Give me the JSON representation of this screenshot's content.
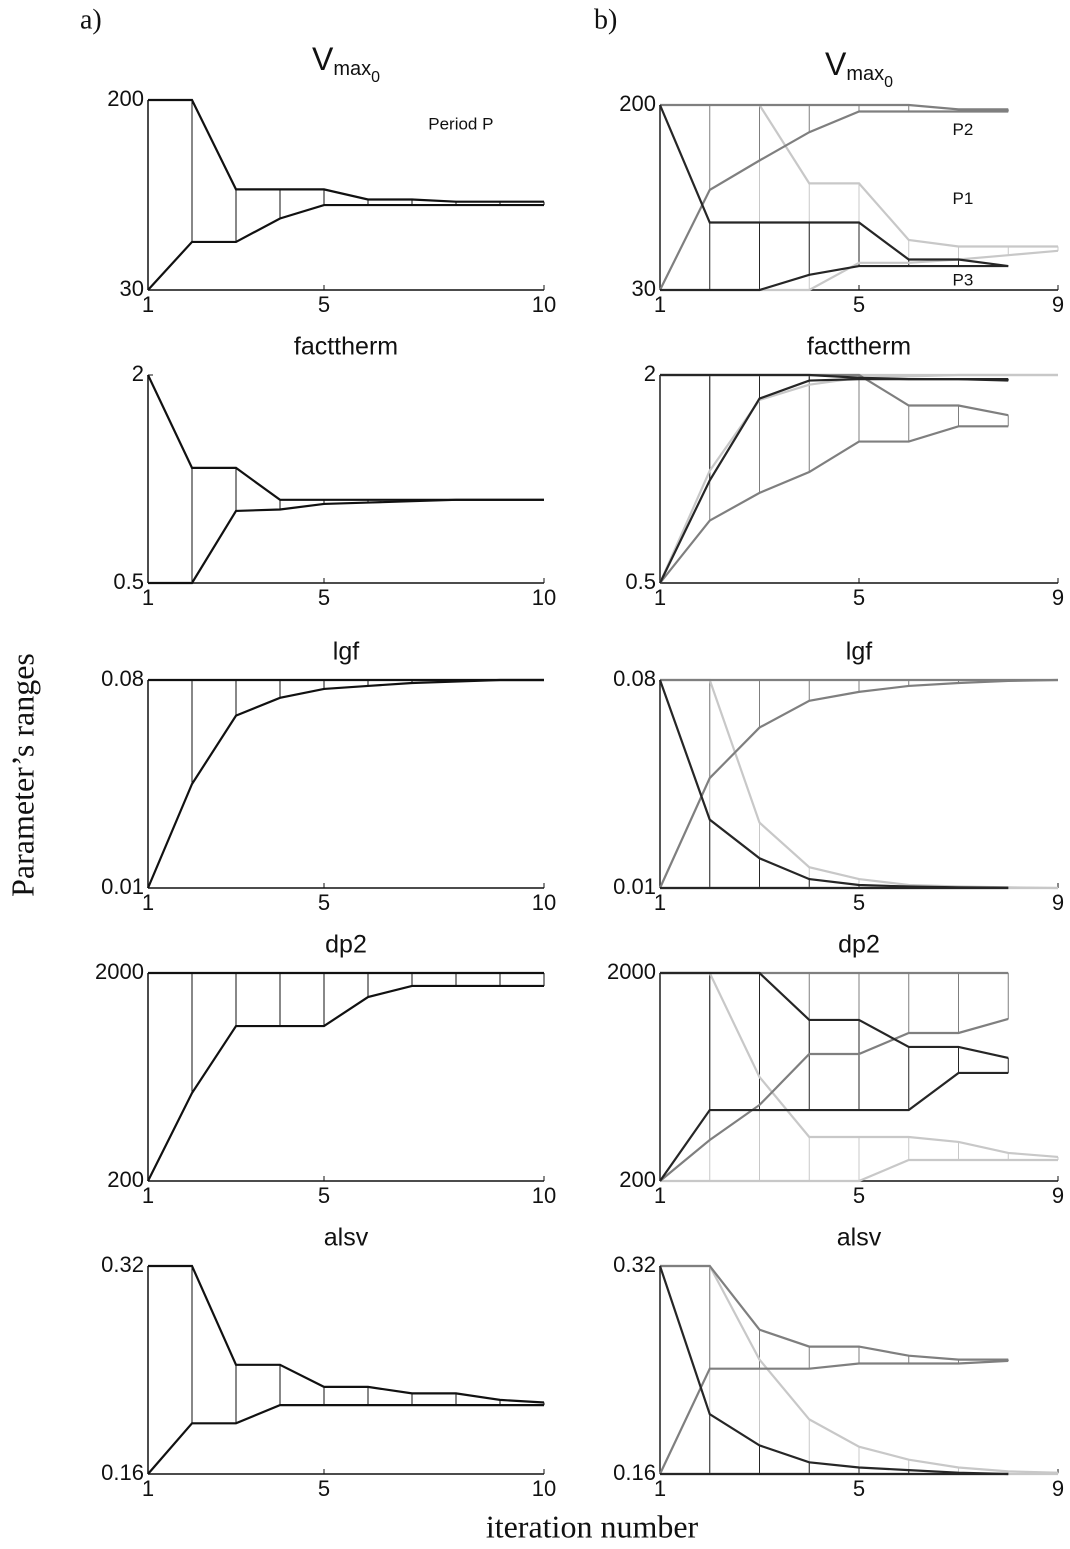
{
  "figure": {
    "panel_labels": [
      "a)",
      "b)"
    ],
    "ylabel": "Parameter’s ranges",
    "xlabel": "iteration number"
  },
  "chart_data": [
    {
      "type": "range",
      "title": [
        "V",
        "max",
        "0"
      ],
      "annotation": "Period P",
      "x": [
        1,
        2,
        3,
        4,
        5,
        6,
        7,
        8,
        9,
        10
      ],
      "xlim": [
        1,
        10
      ],
      "xticks": [
        1,
        5,
        10
      ],
      "ylim": [
        30,
        200
      ],
      "yticks": [
        30,
        200
      ],
      "series": [
        {
          "color": "#111111",
          "upper": [
            200,
            200,
            120,
            120,
            120,
            111,
            111,
            109,
            109,
            109
          ],
          "lower": [
            30,
            73,
            73,
            94,
            106,
            106,
            106,
            106,
            106,
            106
          ]
        }
      ]
    },
    {
      "type": "range",
      "title": [
        "V",
        "max",
        "0"
      ],
      "x": [
        1,
        2,
        3,
        4,
        5,
        6,
        7,
        8,
        9
      ],
      "xlim": [
        1,
        9
      ],
      "xticks": [
        1,
        5,
        9
      ],
      "ylim": [
        30,
        200
      ],
      "yticks": [
        30,
        200
      ],
      "series": [
        {
          "name": "P1",
          "color": "#c8c8c8",
          "upper": [
            null,
            null,
            200,
            128,
            128,
            76,
            70,
            70,
            70
          ],
          "lower": [
            null,
            null,
            30,
            30,
            55,
            55,
            58,
            62,
            66
          ]
        },
        {
          "name": "P2",
          "color": "#7f7f7f",
          "upper": [
            200,
            200,
            200,
            200,
            200,
            200,
            196,
            196,
            null
          ],
          "lower": [
            30,
            122,
            149,
            175,
            194,
            194,
            194,
            194,
            null
          ]
        },
        {
          "name": "P3",
          "color": "#262626",
          "upper": [
            200,
            92,
            92,
            92,
            92,
            58,
            58,
            52,
            null
          ],
          "lower": [
            30,
            30,
            30,
            44,
            52,
            52,
            52,
            52,
            null
          ]
        }
      ]
    },
    {
      "type": "range",
      "title": "facttherm",
      "x": [
        1,
        2,
        3,
        4,
        5,
        6,
        7,
        8,
        9,
        10
      ],
      "xlim": [
        1,
        10
      ],
      "xticks": [
        1,
        5,
        10
      ],
      "ylim": [
        0.5,
        2
      ],
      "yticks": [
        0.5,
        2
      ],
      "series": [
        {
          "color": "#111111",
          "upper": [
            2,
            1.33,
            1.33,
            1.1,
            1.1,
            1.1,
            1.1,
            1.1,
            1.1,
            1.1
          ],
          "lower": [
            0.5,
            0.5,
            1.02,
            1.03,
            1.07,
            1.08,
            1.09,
            1.1,
            1.1,
            1.1
          ]
        }
      ]
    },
    {
      "type": "range",
      "title": "facttherm",
      "x": [
        1,
        2,
        3,
        4,
        5,
        6,
        7,
        8,
        9
      ],
      "xlim": [
        1,
        9
      ],
      "xticks": [
        1,
        5,
        9
      ],
      "ylim": [
        0.5,
        2
      ],
      "yticks": [
        0.5,
        2
      ],
      "series": [
        {
          "color": "#c8c8c8",
          "upper": [
            2,
            2,
            2,
            2,
            2,
            2,
            2,
            2,
            2
          ],
          "lower": [
            0.5,
            1.31,
            1.82,
            1.93,
            1.98,
            1.99,
            2,
            2,
            2
          ]
        },
        {
          "color": "#7f7f7f",
          "upper": [
            2,
            2,
            2,
            2,
            2,
            1.78,
            1.78,
            1.71,
            null
          ],
          "lower": [
            0.5,
            0.95,
            1.15,
            1.3,
            1.52,
            1.52,
            1.63,
            1.63,
            null
          ]
        },
        {
          "color": "#262626",
          "upper": [
            2,
            2,
            2,
            2,
            1.98,
            1.97,
            1.97,
            1.97,
            null
          ],
          "lower": [
            0.5,
            1.24,
            1.83,
            1.96,
            1.97,
            1.97,
            1.97,
            1.96,
            null
          ]
        }
      ]
    },
    {
      "type": "range",
      "title": "lgf",
      "x": [
        1,
        2,
        3,
        4,
        5,
        6,
        7,
        8,
        9,
        10
      ],
      "xlim": [
        1,
        10
      ],
      "xticks": [
        1,
        5,
        10
      ],
      "ylim": [
        0.01,
        0.08
      ],
      "yticks": [
        0.01,
        0.08
      ],
      "series": [
        {
          "color": "#111111",
          "upper": [
            0.08,
            0.08,
            0.08,
            0.08,
            0.08,
            0.08,
            0.08,
            0.08,
            0.08,
            0.08
          ],
          "lower": [
            0.01,
            0.045,
            0.068,
            0.074,
            0.077,
            0.078,
            0.079,
            0.0795,
            0.08,
            0.08
          ]
        }
      ]
    },
    {
      "type": "range",
      "title": "lgf",
      "x": [
        1,
        2,
        3,
        4,
        5,
        6,
        7,
        8,
        9
      ],
      "xlim": [
        1,
        9
      ],
      "xticks": [
        1,
        5,
        9
      ],
      "ylim": [
        0.01,
        0.08
      ],
      "yticks": [
        0.01,
        0.08
      ],
      "series": [
        {
          "color": "#c8c8c8",
          "upper": [
            0.08,
            0.08,
            0.032,
            0.017,
            0.013,
            0.011,
            0.0105,
            0.0102,
            0.01
          ],
          "lower": [
            0.01,
            0.01,
            0.01,
            0.01,
            0.01,
            0.01,
            0.01,
            0.01,
            0.01
          ]
        },
        {
          "color": "#7f7f7f",
          "upper": [
            0.08,
            0.08,
            0.08,
            0.08,
            0.08,
            0.08,
            0.08,
            0.08,
            0.08
          ],
          "lower": [
            0.01,
            0.047,
            0.064,
            0.073,
            0.076,
            0.078,
            0.079,
            0.0797,
            0.08
          ]
        },
        {
          "color": "#262626",
          "upper": [
            0.08,
            0.033,
            0.02,
            0.013,
            0.011,
            0.0105,
            0.0102,
            0.0101,
            null
          ],
          "lower": [
            0.01,
            0.01,
            0.01,
            0.01,
            0.01,
            0.01,
            0.01,
            0.01,
            null
          ]
        }
      ]
    },
    {
      "type": "range",
      "title": "dp2",
      "x": [
        1,
        2,
        3,
        4,
        5,
        6,
        7,
        8,
        9,
        10
      ],
      "xlim": [
        1,
        10
      ],
      "xticks": [
        1,
        5,
        10
      ],
      "ylim": [
        200,
        2000
      ],
      "yticks": [
        200,
        2000
      ],
      "series": [
        {
          "color": "#111111",
          "upper": [
            2000,
            2000,
            2000,
            2000,
            2000,
            2000,
            2000,
            2000,
            2000,
            2000
          ],
          "lower": [
            200,
            961,
            1541,
            1541,
            1541,
            1792,
            1888,
            1888,
            1888,
            1888
          ]
        }
      ]
    },
    {
      "type": "range",
      "title": "dp2",
      "x": [
        1,
        2,
        3,
        4,
        5,
        6,
        7,
        8,
        9
      ],
      "xlim": [
        1,
        9
      ],
      "xticks": [
        1,
        5,
        9
      ],
      "ylim": [
        200,
        2000
      ],
      "yticks": [
        200,
        2000
      ],
      "series": [
        {
          "color": "#c8c8c8",
          "upper": [
            2000,
            2000,
            1100,
            581,
            581,
            581,
            538,
            443,
            408
          ],
          "lower": [
            200,
            200,
            200,
            200,
            200,
            382,
            382,
            382,
            382
          ]
        },
        {
          "color": "#7f7f7f",
          "upper": [
            2000,
            2000,
            2000,
            2000,
            2000,
            2000,
            2000,
            2000,
            null
          ],
          "lower": [
            200,
            555,
            858,
            1299,
            1299,
            1481,
            1481,
            1602,
            null
          ]
        },
        {
          "color": "#262626",
          "upper": [
            2000,
            2000,
            2000,
            1594,
            1594,
            1360,
            1360,
            1265,
            null
          ],
          "lower": [
            200,
            814,
            814,
            814,
            814,
            814,
            1135,
            1135,
            null
          ]
        }
      ]
    },
    {
      "type": "range",
      "title": "alsv",
      "x": [
        1,
        2,
        3,
        4,
        5,
        6,
        7,
        8,
        9,
        10
      ],
      "xlim": [
        1,
        10
      ],
      "xticks": [
        1,
        5,
        10
      ],
      "ylim": [
        0.16,
        0.32
      ],
      "yticks": [
        0.16,
        0.32
      ],
      "series": [
        {
          "color": "#111111",
          "upper": [
            0.32,
            0.32,
            0.244,
            0.244,
            0.227,
            0.227,
            0.222,
            0.222,
            0.217,
            0.215
          ],
          "lower": [
            0.16,
            0.199,
            0.199,
            0.213,
            0.213,
            0.213,
            0.213,
            0.213,
            0.213,
            0.213
          ]
        }
      ]
    },
    {
      "type": "range",
      "title": "alsv",
      "x": [
        1,
        2,
        3,
        4,
        5,
        6,
        7,
        8,
        9
      ],
      "xlim": [
        1,
        9
      ],
      "xticks": [
        1,
        5,
        9
      ],
      "ylim": [
        0.16,
        0.32
      ],
      "yticks": [
        0.16,
        0.32
      ],
      "series": [
        {
          "color": "#c8c8c8",
          "upper": [
            0.32,
            0.32,
            0.248,
            0.202,
            0.181,
            0.171,
            0.165,
            0.162,
            0.161
          ],
          "lower": [
            0.16,
            0.16,
            0.16,
            0.16,
            0.16,
            0.16,
            0.16,
            0.16,
            0.16
          ]
        },
        {
          "color": "#7f7f7f",
          "upper": [
            0.32,
            0.32,
            0.271,
            0.258,
            0.258,
            0.251,
            0.248,
            0.248,
            null
          ],
          "lower": [
            0.16,
            0.241,
            0.241,
            0.241,
            0.245,
            0.245,
            0.245,
            0.247,
            null
          ]
        },
        {
          "color": "#262626",
          "upper": [
            0.32,
            0.206,
            0.182,
            0.169,
            0.165,
            0.163,
            0.161,
            0.16,
            null
          ],
          "lower": [
            0.16,
            0.16,
            0.16,
            0.16,
            0.16,
            0.16,
            0.16,
            0.16,
            null
          ]
        }
      ]
    }
  ]
}
